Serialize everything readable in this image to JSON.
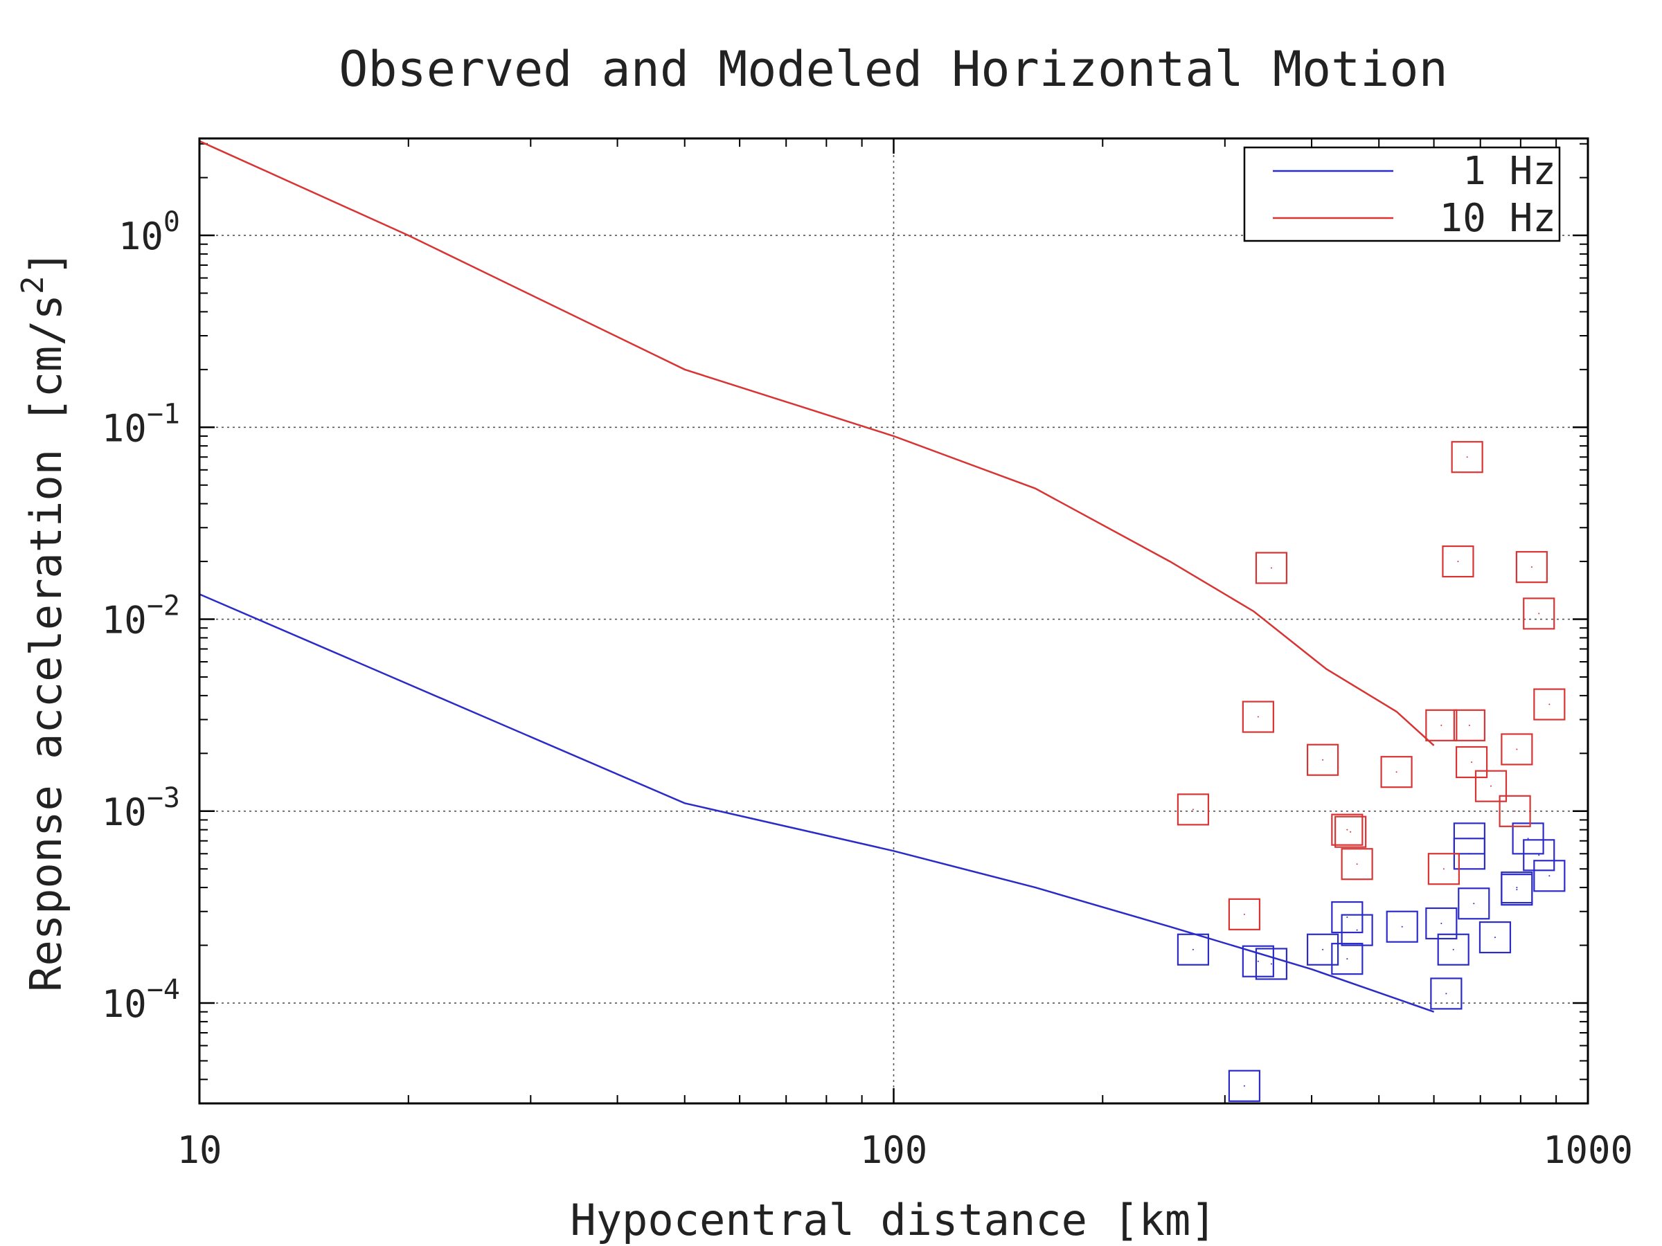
{
  "chart_data": {
    "type": "scatter",
    "title": "Observed and Modeled Horizontal Motion",
    "xlabel": "Hypocentral distance [km]",
    "ylabel": "Response acceleration [cm/s",
    "ylabel_sup": "2",
    "ylabel_close": "]",
    "xscale": "log",
    "yscale": "log",
    "xlim": [
      10,
      1000
    ],
    "ylim": [
      3e-05,
      3.2
    ],
    "grid": true,
    "legend_position": "top-right",
    "x_ticks": [
      {
        "value": 10,
        "label": "10"
      },
      {
        "value": 100,
        "label": "100"
      },
      {
        "value": 1000,
        "label": "1000"
      }
    ],
    "y_ticks": [
      {
        "value": 1,
        "base": "10",
        "exp": "0"
      },
      {
        "value": 0.1,
        "base": "10",
        "exp": "−1"
      },
      {
        "value": 0.01,
        "base": "10",
        "exp": "−2"
      },
      {
        "value": 0.001,
        "base": "10",
        "exp": "−3"
      },
      {
        "value": 0.0001,
        "base": "10",
        "exp": "−4"
      }
    ],
    "series": [
      {
        "name": "1 Hz",
        "color": "#2b2bc8",
        "line": [
          {
            "x": 10,
            "y": 0.0135
          },
          {
            "x": 50,
            "y": 0.0011
          },
          {
            "x": 100,
            "y": 0.00062
          },
          {
            "x": 160,
            "y": 0.0004
          },
          {
            "x": 250,
            "y": 0.00025
          },
          {
            "x": 400,
            "y": 0.00015
          },
          {
            "x": 600,
            "y": 9e-05
          }
        ],
        "points": [
          {
            "x": 270,
            "y": 0.00019
          },
          {
            "x": 320,
            "y": 3.7e-05
          },
          {
            "x": 335,
            "y": 0.000165
          },
          {
            "x": 350,
            "y": 0.00016
          },
          {
            "x": 415,
            "y": 0.00019
          },
          {
            "x": 450,
            "y": 0.00028
          },
          {
            "x": 450,
            "y": 0.00017
          },
          {
            "x": 465,
            "y": 0.00024
          },
          {
            "x": 540,
            "y": 0.00025
          },
          {
            "x": 615,
            "y": 0.00026
          },
          {
            "x": 625,
            "y": 0.000112
          },
          {
            "x": 640,
            "y": 0.00019
          },
          {
            "x": 675,
            "y": 0.00072
          },
          {
            "x": 675,
            "y": 0.0006
          },
          {
            "x": 685,
            "y": 0.00033
          },
          {
            "x": 735,
            "y": 0.00022
          },
          {
            "x": 790,
            "y": 0.0004
          },
          {
            "x": 790,
            "y": 0.00039
          },
          {
            "x": 820,
            "y": 0.00072
          },
          {
            "x": 850,
            "y": 0.00059
          },
          {
            "x": 880,
            "y": 0.00046
          }
        ]
      },
      {
        "name": "10 Hz",
        "color": "#d83434",
        "line": [
          {
            "x": 10,
            "y": 3.1
          },
          {
            "x": 20,
            "y": 1.0
          },
          {
            "x": 50,
            "y": 0.2
          },
          {
            "x": 100,
            "y": 0.09
          },
          {
            "x": 160,
            "y": 0.048
          },
          {
            "x": 250,
            "y": 0.02
          },
          {
            "x": 330,
            "y": 0.011
          },
          {
            "x": 420,
            "y": 0.0055
          },
          {
            "x": 530,
            "y": 0.0033
          },
          {
            "x": 600,
            "y": 0.0022
          }
        ],
        "points": [
          {
            "x": 270,
            "y": 0.00102
          },
          {
            "x": 320,
            "y": 0.00029
          },
          {
            "x": 335,
            "y": 0.0031
          },
          {
            "x": 350,
            "y": 0.0185
          },
          {
            "x": 415,
            "y": 0.00185
          },
          {
            "x": 450,
            "y": 0.0008
          },
          {
            "x": 455,
            "y": 0.00078
          },
          {
            "x": 465,
            "y": 0.00053
          },
          {
            "x": 530,
            "y": 0.0016
          },
          {
            "x": 615,
            "y": 0.0028
          },
          {
            "x": 620,
            "y": 0.0005
          },
          {
            "x": 650,
            "y": 0.02
          },
          {
            "x": 670,
            "y": 0.07
          },
          {
            "x": 675,
            "y": 0.0028
          },
          {
            "x": 680,
            "y": 0.0018
          },
          {
            "x": 725,
            "y": 0.00135
          },
          {
            "x": 785,
            "y": 0.001
          },
          {
            "x": 790,
            "y": 0.0021
          },
          {
            "x": 830,
            "y": 0.0187
          },
          {
            "x": 850,
            "y": 0.0107
          },
          {
            "x": 880,
            "y": 0.0036
          }
        ]
      }
    ]
  }
}
